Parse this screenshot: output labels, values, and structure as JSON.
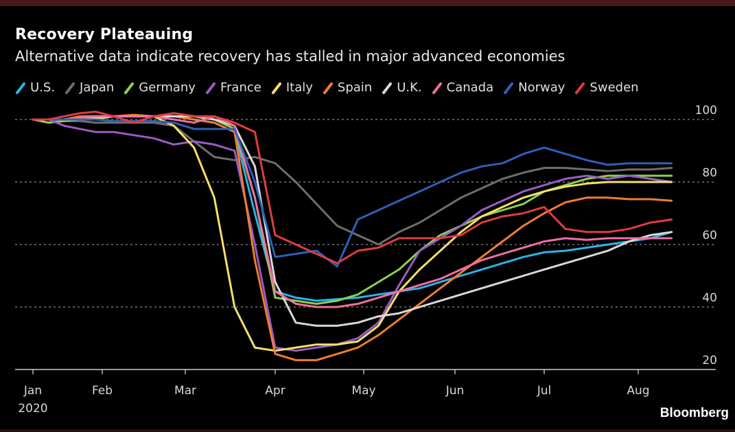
{
  "title": "Recovery Plateauing",
  "subtitle": "Alternative data indicate recovery has stalled in major advanced economies",
  "source": "Bloomberg",
  "chart_data": {
    "type": "line",
    "title": "Recovery Plateauing",
    "subtitle": "Alternative data indicate recovery has stalled in major advanced economies",
    "xlabel": "",
    "ylabel": "",
    "x_ticks": [
      "Jan",
      "Feb",
      "Mar",
      "Apr",
      "May",
      "Jun",
      "Jul",
      "Aug"
    ],
    "x_tick_sublabel": "2020",
    "x_range_days": [
      0,
      226
    ],
    "y_ticks": [
      20,
      40,
      60,
      80,
      100
    ],
    "ylim": [
      20,
      100
    ],
    "grid": "horizontal dotted",
    "y_axis_side": "right",
    "legend_position": "top",
    "x_days": [
      0,
      7,
      14,
      21,
      28,
      35,
      42,
      49,
      56,
      63,
      70,
      77,
      84,
      91,
      98,
      105,
      112,
      119,
      126,
      133,
      140,
      147,
      154,
      161,
      168,
      175,
      182,
      189,
      196,
      203,
      210,
      217,
      224
    ],
    "series": [
      {
        "name": "U.S.",
        "color": "#29b5e8",
        "values": [
          100,
          100,
          100,
          100.5,
          101,
          101,
          101,
          101,
          101,
          100,
          99,
          96,
          70,
          45,
          43,
          42,
          42.5,
          43,
          44,
          45,
          46,
          48,
          50,
          52,
          54,
          56,
          57.5,
          58,
          59,
          60,
          61,
          62,
          64
        ]
      },
      {
        "name": "Japan",
        "color": "#6e6e6e",
        "values": [
          100,
          100,
          99.5,
          99.5,
          99,
          99,
          99,
          99,
          98,
          93,
          88,
          87,
          88,
          86,
          80,
          73,
          66,
          63,
          60,
          64,
          67,
          71,
          75,
          78,
          81,
          83,
          84.5,
          84.5,
          84,
          83.5,
          84,
          84,
          84.5
        ]
      },
      {
        "name": "Germany",
        "color": "#8fd14f",
        "values": [
          100,
          99,
          99.5,
          100,
          100,
          101,
          101,
          101,
          102,
          101,
          100,
          97,
          75,
          43,
          42,
          41,
          42,
          44,
          48,
          52,
          58,
          63,
          66,
          69,
          71,
          73,
          77,
          79,
          81,
          82,
          82,
          82,
          82
        ]
      },
      {
        "name": "France",
        "color": "#9a5cc6",
        "values": [
          100,
          100,
          98,
          97,
          96,
          96,
          95,
          94,
          92,
          93,
          92,
          90,
          60,
          27,
          26,
          27,
          28,
          30,
          35,
          47,
          58,
          62,
          66,
          71,
          74,
          77,
          79,
          81,
          82,
          81,
          82,
          81,
          80
        ]
      },
      {
        "name": "Italy",
        "color": "#f5e06a",
        "values": [
          100,
          100,
          100,
          100,
          100.5,
          101,
          101,
          101,
          98,
          91,
          75,
          40,
          27,
          26,
          27,
          28,
          28,
          29,
          34,
          45,
          52,
          58,
          64,
          69,
          72,
          75,
          77,
          78.5,
          79.5,
          80,
          80,
          80,
          80
        ]
      },
      {
        "name": "Spain",
        "color": "#f07d32",
        "values": [
          100,
          100,
          100,
          101,
          101,
          101,
          101.5,
          101,
          101,
          100,
          99,
          96,
          55,
          25,
          23,
          23,
          25,
          27,
          31,
          36,
          41,
          46,
          51,
          56,
          61,
          66,
          70,
          73.5,
          75,
          75,
          74.5,
          74.5,
          74
        ]
      },
      {
        "name": "U.K.",
        "color": "#d9d9d9",
        "values": [
          100,
          100,
          100,
          100.5,
          101,
          101,
          101,
          101,
          101,
          101,
          100,
          98,
          85,
          48,
          35,
          34,
          34,
          35,
          37,
          38,
          40,
          42,
          44,
          46,
          48,
          50,
          52,
          54,
          56,
          58,
          61,
          63,
          64
        ]
      },
      {
        "name": "Canada",
        "color": "#ef6fa3",
        "values": [
          100,
          100,
          100,
          100.5,
          101,
          101,
          101,
          101,
          100,
          99,
          101,
          98,
          75,
          45,
          41,
          40,
          40,
          41,
          43,
          45,
          47,
          49,
          52,
          55,
          57,
          59,
          61,
          62,
          61.5,
          62,
          62,
          62,
          62
        ]
      },
      {
        "name": "Norway",
        "color": "#2f5fb8",
        "values": [
          100,
          100,
          100,
          100,
          100,
          99.5,
          99.5,
          99.5,
          99,
          97,
          97,
          97,
          80,
          56,
          57,
          58,
          53,
          68,
          71,
          74,
          77,
          80,
          83,
          85,
          86,
          89,
          91,
          89,
          87,
          85.5,
          86,
          86,
          86
        ]
      },
      {
        "name": "Sweden",
        "color": "#e03c40",
        "values": [
          100,
          100,
          101,
          102,
          102.5,
          101,
          99,
          101,
          102,
          101,
          101,
          99,
          96,
          63,
          60,
          57,
          54,
          58,
          59,
          62,
          62,
          62,
          63,
          67,
          69,
          70,
          72,
          65,
          64,
          64,
          65,
          67,
          68
        ]
      }
    ]
  }
}
